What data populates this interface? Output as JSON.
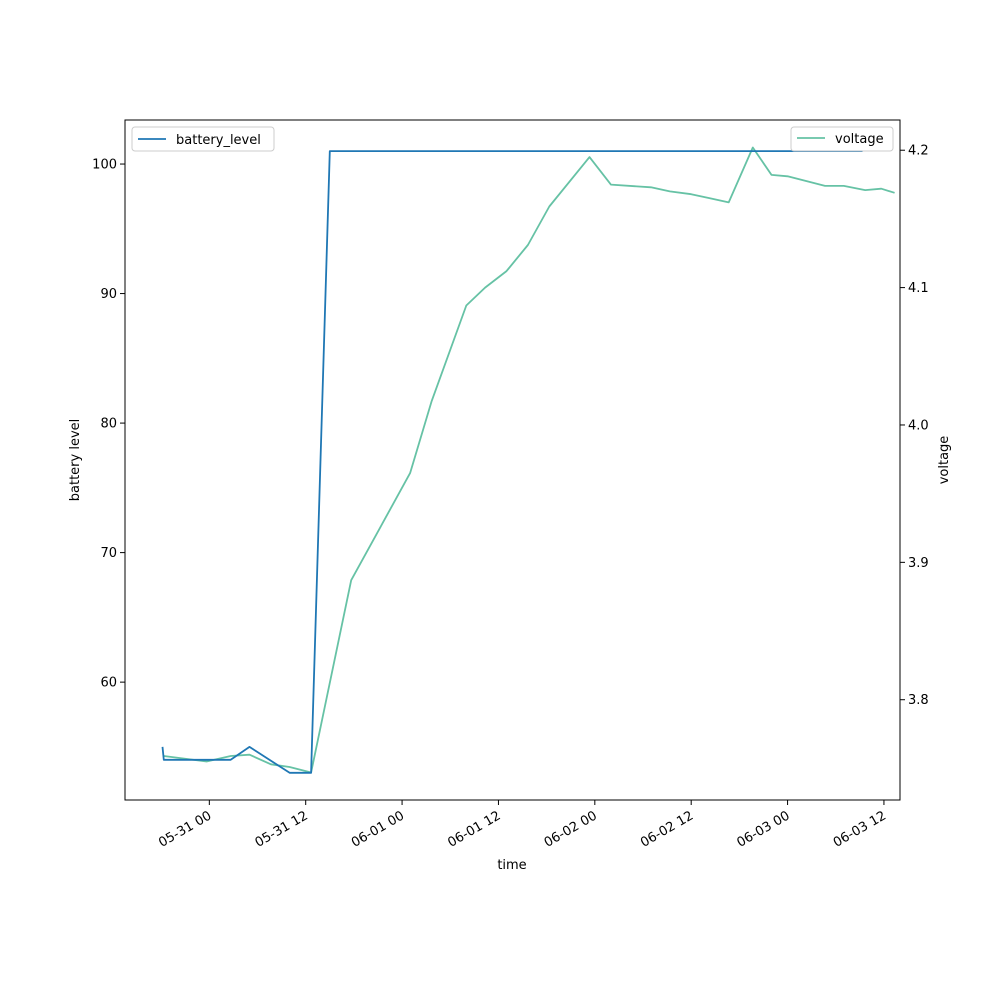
{
  "chart_data": {
    "type": "line",
    "xlabel": "time",
    "ylabel_left": "battery level",
    "ylabel_right": "voltage",
    "x_ticks": [
      "05-31 00",
      "05-31 12",
      "06-01 00",
      "06-01 12",
      "06-02 00",
      "06-02 12",
      "06-03 00",
      "06-03 12"
    ],
    "y_left_ticks": [
      "60",
      "70",
      "80",
      "90",
      "100"
    ],
    "y_right_ticks": [
      "3.8",
      "3.9",
      "4.0",
      "4.1",
      "4.2"
    ],
    "xlim": [
      "2023-05-30 13:30",
      "2023-06-03 14:00"
    ],
    "ylim_left": [
      50.9,
      103.4
    ],
    "ylim_right": [
      3.727,
      4.222
    ],
    "legend_left": {
      "label": "battery_level",
      "placement": "upper-left"
    },
    "legend_right": {
      "label": "voltage",
      "placement": "upper-right"
    },
    "series": [
      {
        "name": "battery_level",
        "axis": "left",
        "color": "#1f77b4",
        "points": [
          [
            "2023-05-30 18:10",
            55
          ],
          [
            "2023-05-30 18:20",
            54
          ],
          [
            "2023-05-31 02:40",
            54
          ],
          [
            "2023-05-31 05:00",
            55
          ],
          [
            "2023-05-31 10:00",
            53
          ],
          [
            "2023-05-31 12:40",
            53
          ],
          [
            "2023-05-31 15:00",
            101
          ],
          [
            "2023-06-03 09:20",
            101
          ]
        ]
      },
      {
        "name": "voltage",
        "axis": "right",
        "color": "#66c2a5",
        "points": [
          [
            "2023-05-30 18:20",
            3.759
          ],
          [
            "2023-05-30 23:40",
            3.755
          ],
          [
            "2023-05-31 02:40",
            3.759
          ],
          [
            "2023-05-31 05:00",
            3.76
          ],
          [
            "2023-05-31 07:40",
            3.753
          ],
          [
            "2023-05-31 10:00",
            3.751
          ],
          [
            "2023-05-31 12:40",
            3.747
          ],
          [
            "2023-05-31 17:40",
            3.887
          ],
          [
            "2023-06-01 01:00",
            3.965
          ],
          [
            "2023-06-01 03:40",
            4.017
          ],
          [
            "2023-06-01 08:00",
            4.087
          ],
          [
            "2023-06-01 10:20",
            4.1
          ],
          [
            "2023-06-01 13:00",
            4.112
          ],
          [
            "2023-06-01 15:40",
            4.131
          ],
          [
            "2023-06-01 18:20",
            4.159
          ],
          [
            "2023-06-01 23:20",
            4.195
          ],
          [
            "2023-06-02 02:00",
            4.175
          ],
          [
            "2023-06-02 07:00",
            4.173
          ],
          [
            "2023-06-02 09:20",
            4.17
          ],
          [
            "2023-06-02 12:00",
            4.168
          ],
          [
            "2023-06-02 14:20",
            4.165
          ],
          [
            "2023-06-02 16:40",
            4.162
          ],
          [
            "2023-06-02 19:40",
            4.202
          ],
          [
            "2023-06-02 22:00",
            4.182
          ],
          [
            "2023-06-03 00:00",
            4.181
          ],
          [
            "2023-06-03 02:40",
            4.177
          ],
          [
            "2023-06-03 04:40",
            4.174
          ],
          [
            "2023-06-03 07:00",
            4.174
          ],
          [
            "2023-06-03 09:40",
            4.171
          ],
          [
            "2023-06-03 11:40",
            4.172
          ],
          [
            "2023-06-03 13:20",
            4.169
          ]
        ]
      }
    ]
  }
}
